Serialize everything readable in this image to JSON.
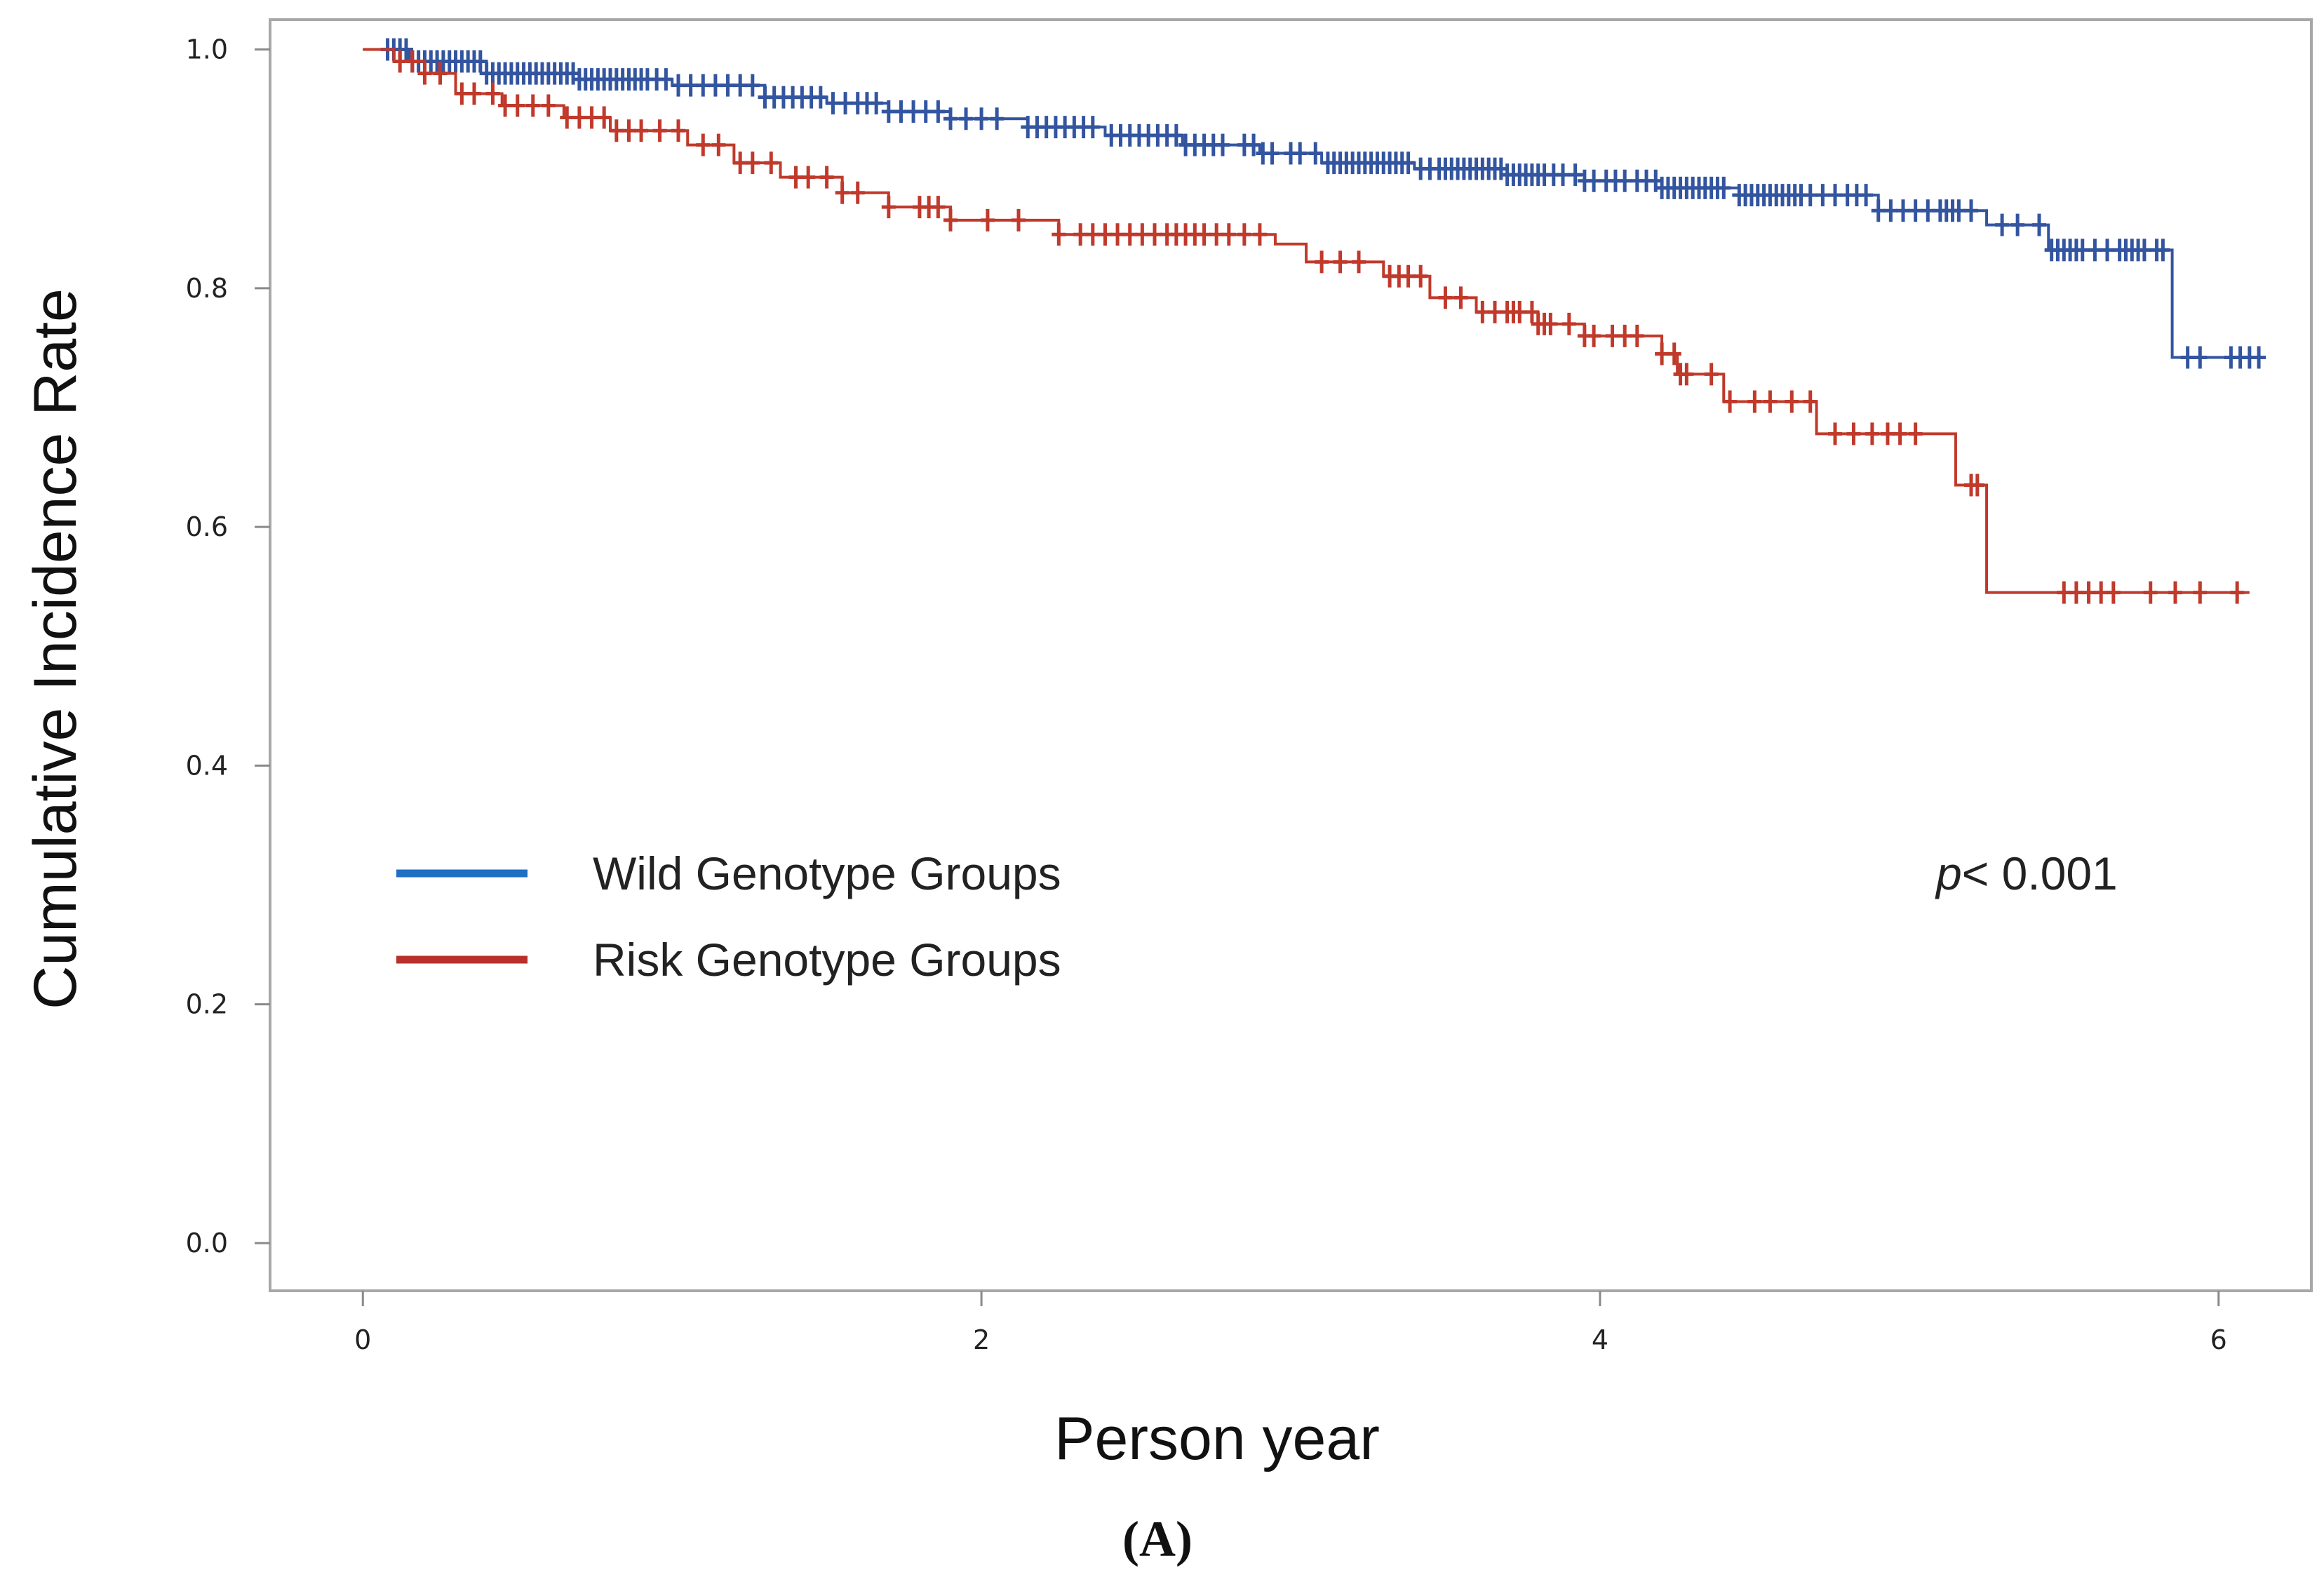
{
  "chart_data": {
    "type": "line",
    "step": true,
    "title": "",
    "xlabel": "Person year",
    "ylabel": "Cumulative Incidence  Rate",
    "xlim": [
      -0.3,
      6.3
    ],
    "ylim": [
      -0.04,
      1.025
    ],
    "x_ticks": [
      "0",
      "2",
      "4",
      "6"
    ],
    "y_ticks": [
      "0.0",
      "0.2",
      "0.4",
      "0.6",
      "0.8",
      "1.0"
    ],
    "grid": false,
    "legend_position": "middle-left",
    "annotation": {
      "italic": "p",
      "rest": "< 0.001"
    },
    "panel_label": "(A)",
    "series": [
      {
        "name": "Wild Genotype Groups",
        "color": "#3355a0",
        "legend_color": "#1f6fc4",
        "steps": [
          [
            0,
            1.0
          ],
          [
            0.15,
            0.99
          ],
          [
            0.4,
            0.98
          ],
          [
            0.7,
            0.975
          ],
          [
            1.0,
            0.97
          ],
          [
            1.3,
            0.96
          ],
          [
            1.5,
            0.955
          ],
          [
            1.7,
            0.948
          ],
          [
            1.9,
            0.942
          ],
          [
            2.15,
            0.935
          ],
          [
            2.4,
            0.928
          ],
          [
            2.65,
            0.92
          ],
          [
            2.9,
            0.913
          ],
          [
            3.1,
            0.905
          ],
          [
            3.4,
            0.9
          ],
          [
            3.7,
            0.895
          ],
          [
            3.95,
            0.89
          ],
          [
            4.2,
            0.884
          ],
          [
            4.45,
            0.878
          ],
          [
            4.9,
            0.865
          ],
          [
            5.25,
            0.853
          ],
          [
            5.45,
            0.832
          ],
          [
            5.85,
            0.742
          ],
          [
            6.15,
            0.742
          ]
        ],
        "censored": [
          0.08,
          0.1,
          0.12,
          0.14,
          0.16,
          0.18,
          0.2,
          0.22,
          0.24,
          0.26,
          0.28,
          0.3,
          0.32,
          0.34,
          0.36,
          0.38,
          0.4,
          0.42,
          0.44,
          0.46,
          0.48,
          0.5,
          0.52,
          0.54,
          0.56,
          0.58,
          0.6,
          0.62,
          0.64,
          0.66,
          0.68,
          0.7,
          0.72,
          0.74,
          0.76,
          0.78,
          0.8,
          0.82,
          0.84,
          0.86,
          0.88,
          0.9,
          0.92,
          0.95,
          0.98,
          1.02,
          1.06,
          1.1,
          1.14,
          1.18,
          1.22,
          1.26,
          1.3,
          1.33,
          1.36,
          1.39,
          1.42,
          1.45,
          1.48,
          1.52,
          1.56,
          1.6,
          1.63,
          1.66,
          1.7,
          1.74,
          1.78,
          1.82,
          1.86,
          1.9,
          1.95,
          2.0,
          2.05,
          2.15,
          2.18,
          2.21,
          2.24,
          2.27,
          2.3,
          2.33,
          2.36,
          2.42,
          2.45,
          2.48,
          2.51,
          2.54,
          2.57,
          2.6,
          2.63,
          2.66,
          2.69,
          2.72,
          2.75,
          2.78,
          2.85,
          2.88,
          2.91,
          2.94,
          3.0,
          3.03,
          3.08,
          3.12,
          3.14,
          3.16,
          3.18,
          3.2,
          3.22,
          3.24,
          3.26,
          3.28,
          3.3,
          3.32,
          3.34,
          3.36,
          3.38,
          3.42,
          3.45,
          3.48,
          3.5,
          3.52,
          3.54,
          3.56,
          3.58,
          3.6,
          3.62,
          3.64,
          3.66,
          3.68,
          3.7,
          3.72,
          3.74,
          3.76,
          3.78,
          3.8,
          3.82,
          3.85,
          3.88,
          3.92,
          3.95,
          3.98,
          4.02,
          4.05,
          4.08,
          4.12,
          4.15,
          4.18,
          4.2,
          4.22,
          4.24,
          4.26,
          4.28,
          4.3,
          4.32,
          4.34,
          4.36,
          4.38,
          4.4,
          4.45,
          4.47,
          4.49,
          4.51,
          4.53,
          4.55,
          4.57,
          4.59,
          4.61,
          4.63,
          4.65,
          4.68,
          4.72,
          4.76,
          4.8,
          4.83,
          4.86,
          4.9,
          4.94,
          4.98,
          5.02,
          5.06,
          5.1,
          5.12,
          5.14,
          5.16,
          5.2,
          5.3,
          5.35,
          5.42,
          5.46,
          5.48,
          5.5,
          5.52,
          5.54,
          5.56,
          5.6,
          5.64,
          5.68,
          5.7,
          5.72,
          5.74,
          5.76,
          5.8,
          5.82,
          5.9,
          5.94,
          6.04,
          6.07,
          6.1,
          6.13
        ]
      },
      {
        "name": "Risk Genotype Groups",
        "color": "#c0392b",
        "legend_color": "#b8302a",
        "steps": [
          [
            0,
            1.0
          ],
          [
            0.1,
            0.99
          ],
          [
            0.2,
            0.98
          ],
          [
            0.3,
            0.963
          ],
          [
            0.45,
            0.953
          ],
          [
            0.65,
            0.943
          ],
          [
            0.8,
            0.932
          ],
          [
            1.05,
            0.92
          ],
          [
            1.2,
            0.905
          ],
          [
            1.35,
            0.893
          ],
          [
            1.55,
            0.88
          ],
          [
            1.7,
            0.868
          ],
          [
            1.9,
            0.857
          ],
          [
            2.25,
            0.845
          ],
          [
            2.95,
            0.837
          ],
          [
            3.05,
            0.822
          ],
          [
            3.3,
            0.81
          ],
          [
            3.45,
            0.792
          ],
          [
            3.6,
            0.78
          ],
          [
            3.8,
            0.77
          ],
          [
            3.95,
            0.76
          ],
          [
            4.2,
            0.745
          ],
          [
            4.25,
            0.728
          ],
          [
            4.4,
            0.705
          ],
          [
            4.7,
            0.678
          ],
          [
            5.15,
            0.635
          ],
          [
            5.25,
            0.545
          ],
          [
            6.1,
            0.545
          ]
        ],
        "censored": [
          0.12,
          0.16,
          0.2,
          0.25,
          0.32,
          0.36,
          0.42,
          0.46,
          0.5,
          0.55,
          0.6,
          0.66,
          0.7,
          0.74,
          0.78,
          0.82,
          0.86,
          0.9,
          0.96,
          1.02,
          1.1,
          1.15,
          1.22,
          1.26,
          1.32,
          1.4,
          1.44,
          1.5,
          1.55,
          1.6,
          1.7,
          1.8,
          1.83,
          1.86,
          1.9,
          2.02,
          2.12,
          2.25,
          2.32,
          2.36,
          2.4,
          2.44,
          2.48,
          2.52,
          2.56,
          2.6,
          2.63,
          2.66,
          2.69,
          2.72,
          2.76,
          2.8,
          2.85,
          2.9,
          3.1,
          3.16,
          3.22,
          3.32,
          3.35,
          3.38,
          3.42,
          3.5,
          3.55,
          3.62,
          3.66,
          3.7,
          3.72,
          3.74,
          3.78,
          3.8,
          3.82,
          3.84,
          3.9,
          3.95,
          3.98,
          4.04,
          4.08,
          4.12,
          4.2,
          4.24,
          4.26,
          4.28,
          4.36,
          4.42,
          4.5,
          4.55,
          4.62,
          4.68,
          4.76,
          4.82,
          4.88,
          4.93,
          4.97,
          5.02,
          5.2,
          5.22,
          5.5,
          5.54,
          5.58,
          5.62,
          5.66,
          5.78,
          5.86,
          5.94,
          6.06
        ]
      }
    ]
  }
}
